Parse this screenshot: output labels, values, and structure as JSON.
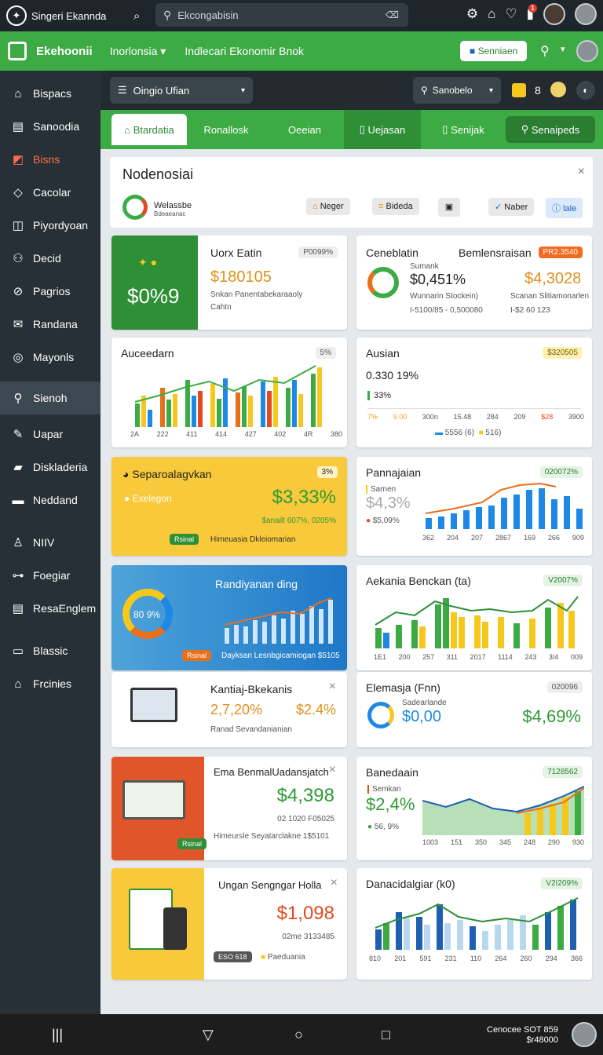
{
  "top": {
    "app_name": "Singeri Ekannda",
    "search_placeholder": "Ekcongabisin"
  },
  "green_bar": {
    "brand": "Ekehoonii",
    "menu1": "Inorlonsia",
    "menu2": "Indlecari Ekonomir Bnok",
    "button": "Senniaen"
  },
  "sidebar": {
    "items": [
      "Bispacs",
      "Sanoodia",
      "Bisns",
      "Cacolar",
      "Piyordyoan",
      "Decid",
      "Pagrios",
      "Randana",
      "Mayonls",
      "Sienoh",
      "Uapar",
      "Diskladeria",
      "Neddand",
      "NIIV",
      "Foegiar",
      "ResaEnglem",
      "Blassic",
      "Frcinies"
    ]
  },
  "toolbar": {
    "select_label": "Oingio Ufian",
    "search_label": "Sanobelo",
    "count": "8"
  },
  "tabs": [
    "Btardatia",
    "Ronallosk",
    "Oeeian",
    "Uejasan",
    "Senijak",
    "Senaipeds"
  ],
  "panel": {
    "title": "Nodenosiai",
    "sub1": "Welassbe",
    "sub2": "Bdeaeanac",
    "chips": [
      "Neger",
      "Bideda",
      "",
      "Naber",
      "lale"
    ]
  },
  "cards": {
    "c1": {
      "big": "$0%9",
      "title": "Uorx Eatin",
      "badge": "P0099%",
      "value": "$180105",
      "desc1": "Snkan Panentabekaraaoly",
      "desc2": "Cahtn"
    },
    "c2": {
      "title": "Ceneblatin",
      "title2": "Bemlensraisan",
      "badge": "PR2.3540",
      "label": "Sumank",
      "value": "$0,451%",
      "value2": "$4,3028",
      "sub1": "Wunnarin Stockein)",
      "sub2": "Scanan Slitiamonarlen",
      "foot1": "I-5100/85 - 0,500080",
      "foot2": "I-$2 60 123"
    },
    "c3": {
      "title": "Auceedarn",
      "badge": "5%",
      "xlabels": [
        "2A",
        "222",
        "411",
        "414",
        "427",
        "402",
        "4R",
        "380"
      ]
    },
    "c4": {
      "title": "Ausian",
      "badge": "$320505",
      "value": "0.330 19%",
      "sub": "33%",
      "xlabels": [
        "7%",
        "9.00",
        "300n",
        "15.48",
        "284",
        "209",
        "$28",
        "3900"
      ],
      "legend1": "5556 (6)",
      "legend2": "516)"
    },
    "c5": {
      "title": "Separoalagvkan",
      "badge": "3%",
      "sub": "Exelegon",
      "value": "$3,33%",
      "sub2": "$anailt 607%, 0205%",
      "tag": "Rsinal",
      "foot": "Himeuasia Dkleiomarian"
    },
    "c6": {
      "title": "Pannajaian",
      "badge": "020072%",
      "label": "Sarnen",
      "value": "$4,3%",
      "sub": "$5,09%",
      "xlabels": [
        "362",
        "204",
        "207",
        "2867",
        "169",
        "266",
        "909"
      ]
    },
    "c7": {
      "title": "Randiyanan ding",
      "donut": "80 9%",
      "tag": "Rsinal",
      "foot": "Dayksan Lesnbgicamiogan $5105"
    },
    "c8": {
      "title": "Aekania Benckan (ta)",
      "badge": "V2007%",
      "xlabels": [
        "1E1",
        "200",
        "257",
        "311",
        "2017",
        "1114",
        "243",
        "3/4",
        "009"
      ]
    },
    "c9": {
      "title": "Kantiaj-Bkekanis",
      "value1": "2,7,20%",
      "value2": "$2.4%",
      "desc": "Ranad Sevandanianian"
    },
    "c10": {
      "title": "Elemasja (Fnn)",
      "badge": "020096",
      "label": "Sadearlande",
      "value": "$0,00",
      "value2": "$4,69%"
    },
    "c11": {
      "title": "Ema BenmalUadansjatch",
      "value": "$4,398",
      "sub": "02 1020 F05025",
      "tag": "Rsinal",
      "foot": "Himeursle Seyatarclakne 1$5101"
    },
    "c12": {
      "title": "Banedaain",
      "badge": "7128562",
      "label": "Semkan",
      "value": "$2,4%",
      "sub": "56, 9%",
      "xlabels": [
        "1003",
        "151",
        "350",
        "345",
        "248",
        "290",
        "930"
      ]
    },
    "c13": {
      "title": "Ungan Sengngar Holla",
      "value": "$1,098",
      "sub": "02me 3133485",
      "tag": "ESO 618",
      "foot": "Paeduania"
    },
    "c14": {
      "title": "Danacidalgiar (k0)",
      "badge": "V2I209%",
      "xlabels": [
        "810",
        "201",
        "591",
        "231",
        "110",
        "264",
        "260",
        "294",
        "366"
      ]
    }
  },
  "bottom": {
    "line1": "Cenocee SOT 859",
    "line2": "$r48000"
  }
}
